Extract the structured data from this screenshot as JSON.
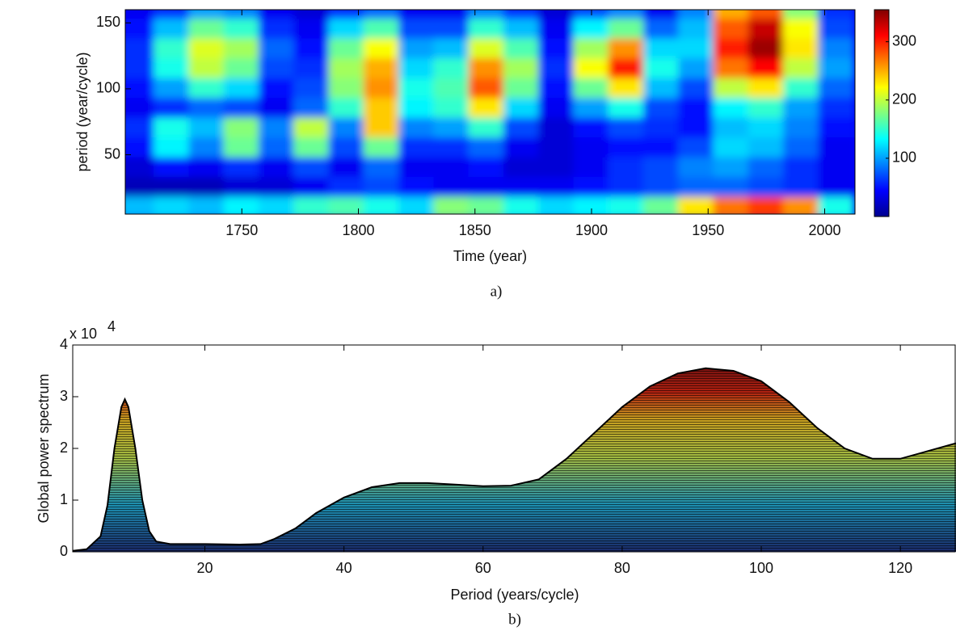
{
  "chart_data": [
    {
      "type": "heatmap",
      "ylabel": "period (year/cycle)",
      "xlabel": "Time (year)",
      "caption": "a)",
      "x": [
        1705,
        1720,
        1735,
        1750,
        1765,
        1780,
        1795,
        1810,
        1825,
        1840,
        1855,
        1870,
        1885,
        1900,
        1915,
        1930,
        1945,
        1960,
        1975,
        1990,
        2005
      ],
      "y": [
        160,
        145,
        130,
        115,
        100,
        85,
        70,
        55,
        40,
        25,
        10
      ],
      "z": [
        [
          40,
          60,
          100,
          90,
          40,
          30,
          60,
          80,
          40,
          40,
          90,
          60,
          30,
          70,
          90,
          40,
          90,
          250,
          280,
          180,
          60
        ],
        [
          50,
          110,
          170,
          150,
          60,
          40,
          120,
          160,
          70,
          70,
          150,
          110,
          40,
          130,
          170,
          80,
          110,
          280,
          330,
          220,
          70
        ],
        [
          60,
          150,
          210,
          190,
          80,
          50,
          170,
          220,
          100,
          110,
          210,
          160,
          50,
          190,
          260,
          120,
          120,
          300,
          345,
          230,
          90
        ],
        [
          60,
          140,
          200,
          170,
          70,
          60,
          190,
          250,
          120,
          150,
          260,
          190,
          60,
          220,
          300,
          140,
          100,
          270,
          310,
          200,
          100
        ],
        [
          50,
          100,
          150,
          120,
          50,
          70,
          180,
          260,
          140,
          160,
          280,
          170,
          50,
          170,
          230,
          110,
          70,
          200,
          230,
          150,
          80
        ],
        [
          40,
          60,
          80,
          70,
          40,
          80,
          150,
          240,
          130,
          150,
          230,
          120,
          40,
          100,
          140,
          70,
          50,
          130,
          150,
          100,
          60
        ],
        [
          60,
          140,
          110,
          180,
          90,
          200,
          90,
          240,
          90,
          100,
          150,
          70,
          30,
          50,
          70,
          60,
          50,
          110,
          120,
          90,
          50
        ],
        [
          50,
          130,
          90,
          170,
          80,
          170,
          70,
          170,
          60,
          60,
          80,
          40,
          30,
          40,
          50,
          50,
          70,
          120,
          110,
          80,
          40
        ],
        [
          30,
          50,
          40,
          60,
          40,
          70,
          40,
          80,
          40,
          40,
          50,
          30,
          30,
          40,
          60,
          70,
          90,
          100,
          80,
          60,
          40
        ],
        [
          20,
          20,
          20,
          30,
          30,
          40,
          60,
          70,
          50,
          40,
          40,
          40,
          40,
          50,
          60,
          70,
          80,
          80,
          70,
          60,
          40
        ],
        [
          110,
          120,
          110,
          130,
          120,
          150,
          160,
          140,
          120,
          180,
          170,
          140,
          120,
          130,
          140,
          170,
          230,
          270,
          290,
          260,
          140
        ]
      ],
      "xlim": [
        1700,
        2013
      ],
      "xticks": [
        1750,
        1800,
        1850,
        1900,
        1950,
        2000
      ],
      "ylim": [
        5,
        160
      ],
      "yticks": [
        50,
        100,
        150
      ],
      "colormap": "jet",
      "clim": [
        0,
        355
      ],
      "cticks": [
        100,
        200,
        300
      ]
    },
    {
      "type": "area",
      "ylabel": "Global power spectrum",
      "xlabel": "Period (years/cycle)",
      "caption": "b)",
      "y_multiplier": "x 10",
      "y_exponent": "4",
      "x": [
        1,
        3,
        5,
        6,
        7,
        8,
        8.5,
        9,
        10,
        11,
        12,
        13,
        15,
        20,
        25,
        28,
        30,
        33,
        36,
        40,
        44,
        48,
        52,
        56,
        60,
        64,
        68,
        72,
        76,
        80,
        84,
        88,
        92,
        96,
        100,
        104,
        108,
        112,
        116,
        120,
        124,
        128
      ],
      "values": [
        0.02,
        0.05,
        0.3,
        0.9,
        2.0,
        2.8,
        2.95,
        2.8,
        2.0,
        1.0,
        0.4,
        0.2,
        0.15,
        0.15,
        0.14,
        0.15,
        0.25,
        0.45,
        0.75,
        1.05,
        1.25,
        1.33,
        1.33,
        1.3,
        1.27,
        1.28,
        1.4,
        1.8,
        2.3,
        2.8,
        3.2,
        3.45,
        3.55,
        3.5,
        3.3,
        2.9,
        2.4,
        2.0,
        1.8,
        1.8,
        1.95,
        2.1
      ],
      "xlim": [
        1,
        128
      ],
      "xticks": [
        20,
        40,
        60,
        80,
        100,
        120
      ],
      "ylim": [
        0,
        4
      ],
      "yticks": [
        0,
        1,
        2,
        3,
        4
      ],
      "colormap": "jet"
    }
  ]
}
